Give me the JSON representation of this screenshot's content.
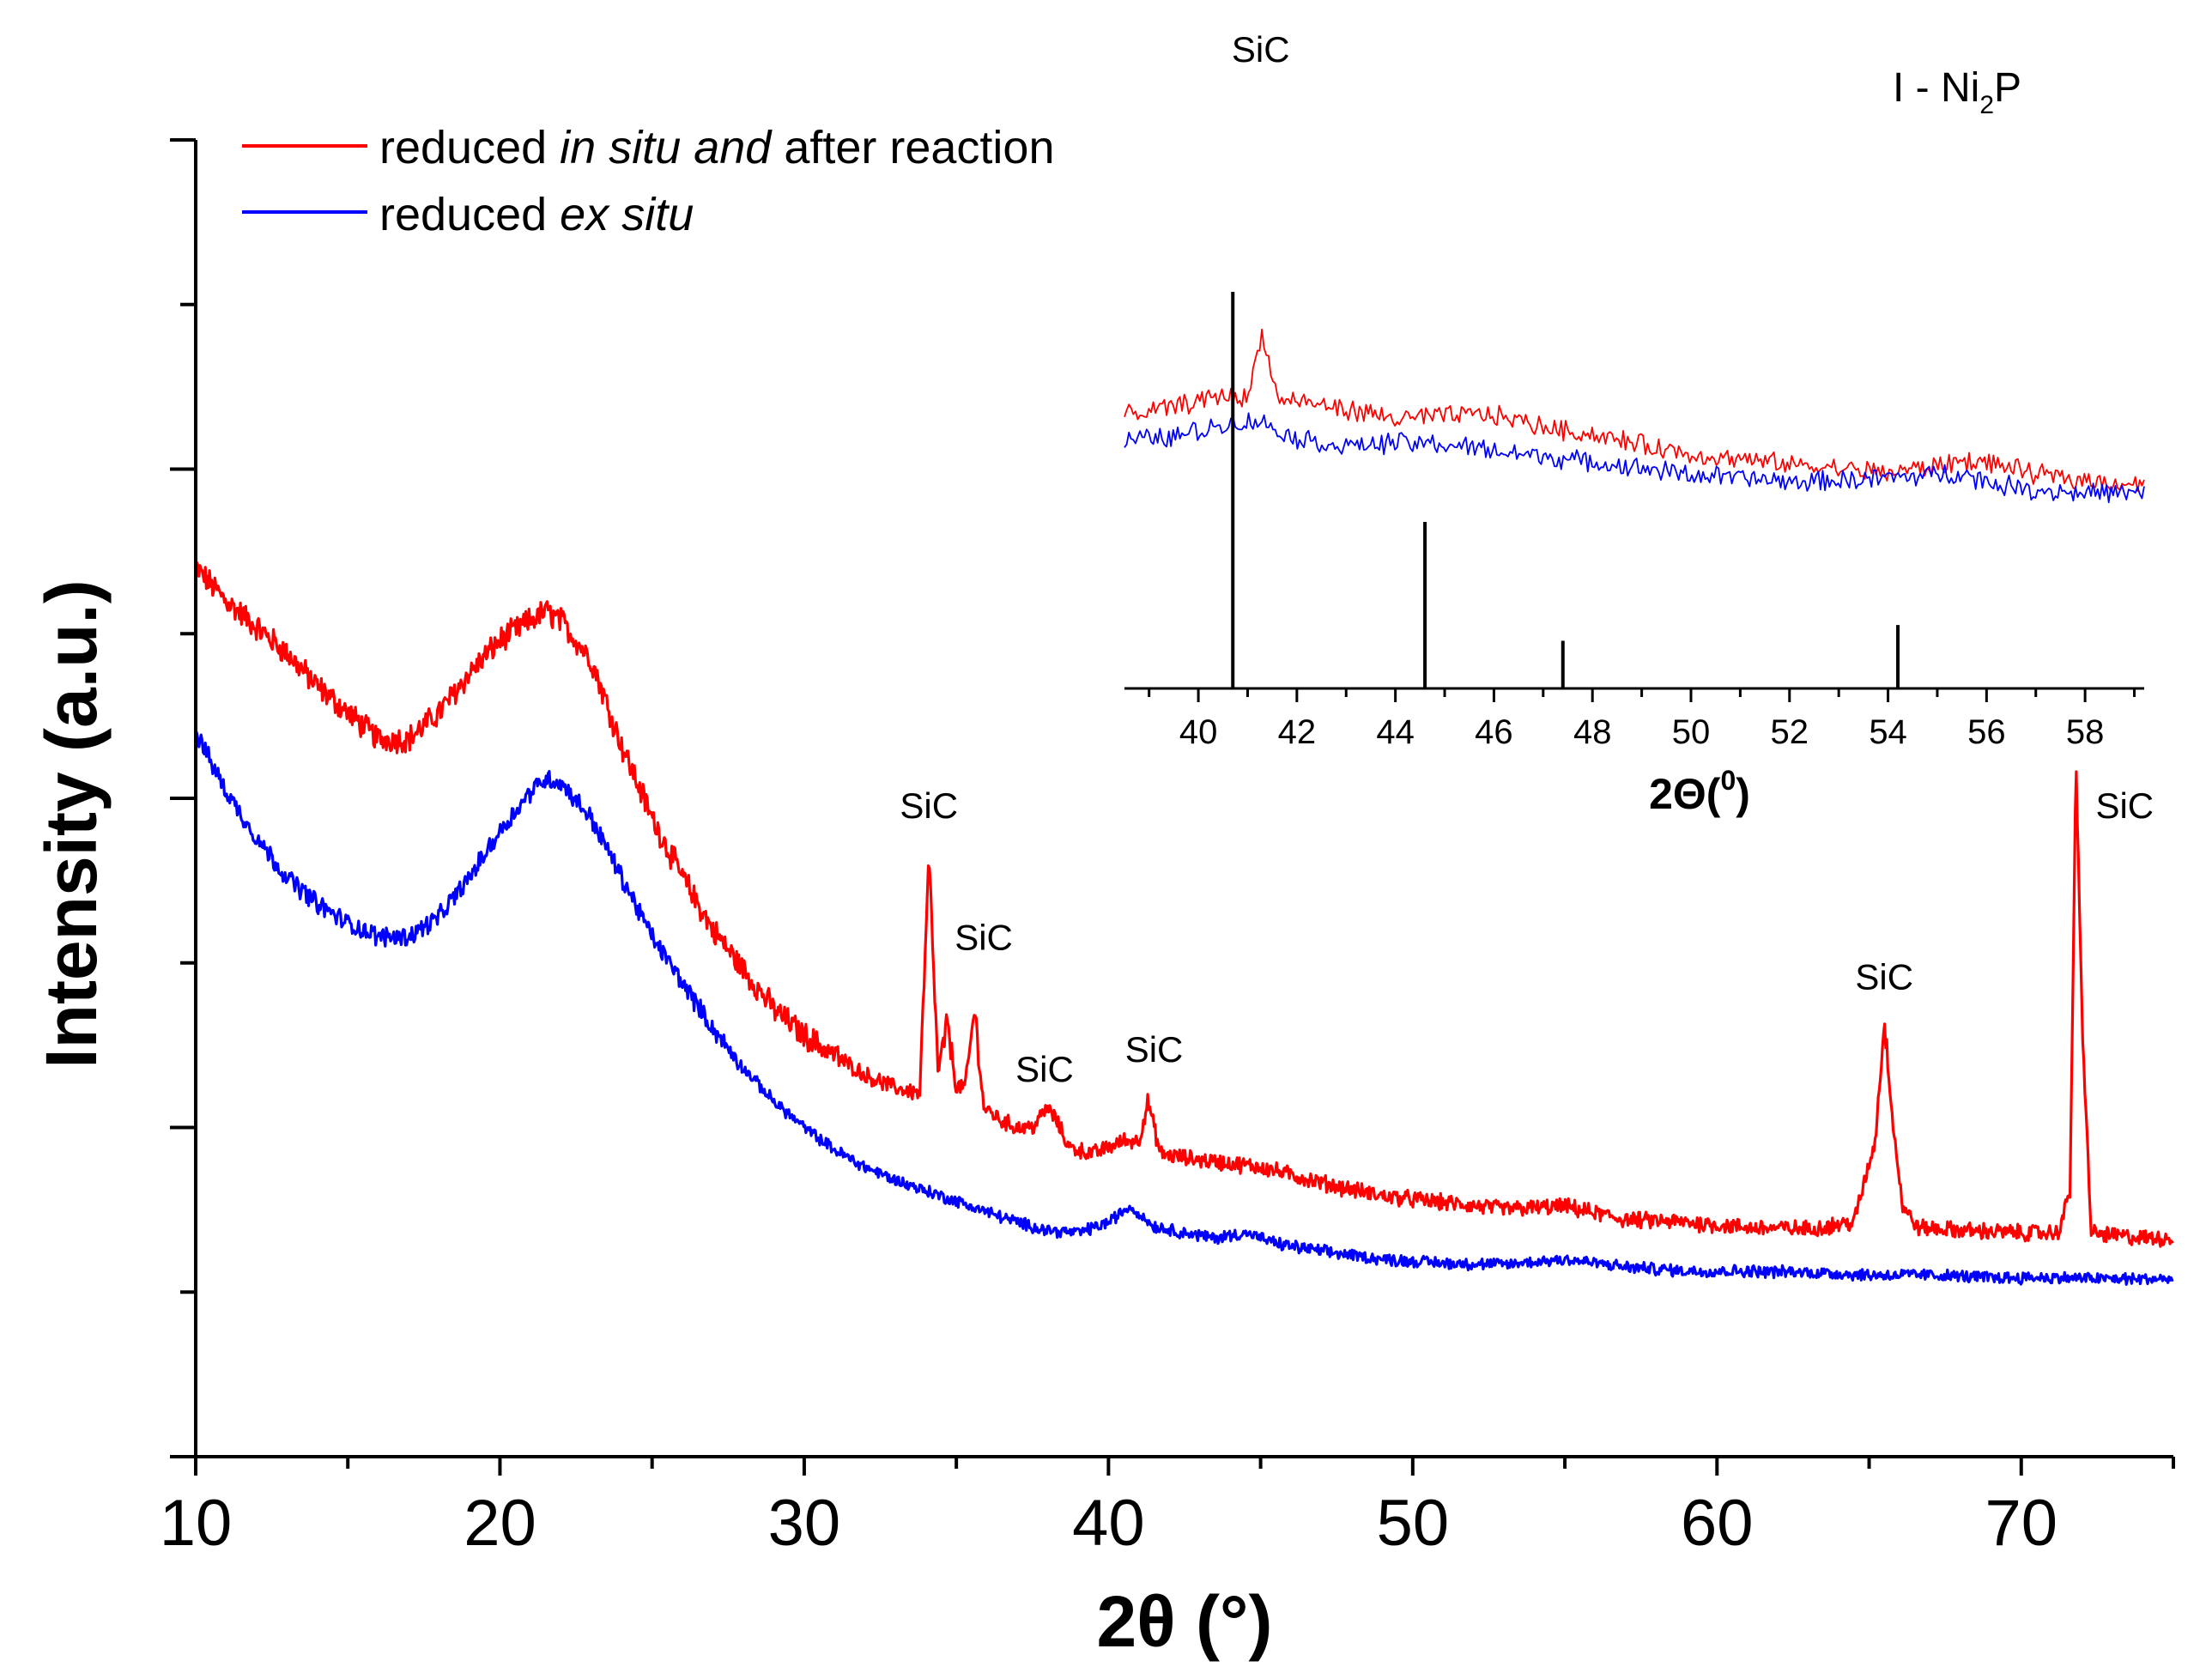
{
  "chart_data": [
    {
      "type": "line",
      "title": "",
      "xlabel": "2θ (°)",
      "ylabel": "Intensity (a.u.)",
      "xlim": [
        10,
        75
      ],
      "ylim": [
        0,
        100
      ],
      "xticks": [
        10,
        20,
        30,
        40,
        50,
        60,
        70
      ],
      "xtick_labels": [
        "10",
        "20",
        "30",
        "40",
        "50",
        "60",
        "70"
      ],
      "y_tick_labels_shown": false,
      "grid": false,
      "legend": {
        "placement": "top-left",
        "entries": [
          {
            "parts": [
              {
                "text": "reduced ",
                "italic": false
              },
              {
                "text": "in situ and",
                "italic": true
              },
              {
                "text": " after reaction",
                "italic": false
              }
            ],
            "color": "#ff0000"
          },
          {
            "parts": [
              {
                "text": "reduced ",
                "italic": false
              },
              {
                "text": "ex situ",
                "italic": true
              }
            ],
            "color": "#0000ff"
          }
        ]
      },
      "series": [
        {
          "color": "#ff0000",
          "x": [
            10,
            11,
            12,
            13,
            14,
            15,
            16,
            17,
            18,
            19,
            20,
            21,
            21.5,
            22,
            23,
            24,
            25,
            26,
            27,
            28,
            29,
            30,
            31,
            32,
            33,
            33.8,
            34.1,
            34.4,
            34.7,
            35,
            35.3,
            35.6,
            35.9,
            36.5,
            37,
            37.5,
            38,
            38.3,
            38.7,
            39.5,
            40.5,
            41,
            41.3,
            41.7,
            42.5,
            43.5,
            45,
            47,
            49,
            51,
            53,
            55,
            57,
            59,
            61,
            63,
            64.5,
            65.2,
            65.5,
            65.8,
            66.1,
            66.6,
            68,
            70,
            71.2,
            71.6,
            71.8,
            72.0,
            72.3,
            73,
            74,
            75
          ],
          "y": [
            67.5,
            65,
            63,
            61,
            58.5,
            56.5,
            54.5,
            54.5,
            56.5,
            59.5,
            62,
            63.5,
            64.2,
            63.5,
            60.5,
            54,
            48.5,
            44,
            40,
            37,
            34,
            32,
            30.5,
            29,
            28,
            27.6,
            45.5,
            29,
            33,
            28,
            28.2,
            34,
            26.5,
            25.5,
            25,
            25,
            26.5,
            25.5,
            23.5,
            23,
            24,
            24,
            27,
            23,
            22.7,
            22.4,
            22,
            20.8,
            19.8,
            19.3,
            18.8,
            19,
            18,
            17.8,
            17.4,
            17.3,
            17.8,
            24,
            33,
            25,
            19,
            17.4,
            17.2,
            17,
            17,
            20,
            52.5,
            33,
            17,
            16.8,
            16.6,
            16.6
          ]
        },
        {
          "color": "#0000ff",
          "x": [
            10,
            11,
            12,
            13,
            14,
            15,
            16,
            17,
            18,
            19,
            20,
            21,
            21.5,
            22,
            23,
            24,
            25,
            26,
            27,
            28,
            29,
            30,
            31,
            32,
            33,
            34,
            35,
            36,
            37,
            38,
            39,
            40,
            40.7,
            41.5,
            42.5,
            43.5,
            44.5,
            45.5,
            47,
            49,
            51,
            53,
            55,
            57,
            59,
            61,
            63,
            65,
            67,
            69,
            71,
            73,
            75
          ],
          "y": [
            55,
            50.5,
            47,
            44,
            42,
            40.5,
            39.5,
            39.5,
            41,
            44,
            47.5,
            50.5,
            51.5,
            51.2,
            48.5,
            44,
            39.5,
            36,
            32.5,
            29.5,
            27,
            25,
            23.3,
            22,
            21,
            20.2,
            19.4,
            18.6,
            17.8,
            17.2,
            17,
            17.8,
            19,
            17.5,
            17,
            16.6,
            17,
            16.2,
            15.6,
            15,
            14.7,
            14.6,
            15,
            14.4,
            14.1,
            14.1,
            14,
            13.8,
            13.8,
            13.6,
            13.6,
            13.5,
            13.5
          ]
        }
      ],
      "annotations": [
        {
          "text": "SiC",
          "x": 34.1,
          "y": 48.5
        },
        {
          "text": "SiC",
          "x": 35.9,
          "y": 38.5
        },
        {
          "text": "SiC",
          "x": 37.9,
          "y": 28.5
        },
        {
          "text": "SiC",
          "x": 41.5,
          "y": 30.0
        },
        {
          "text": "SiC",
          "x": 65.5,
          "y": 35.5
        },
        {
          "text": "SiC",
          "x": 73.4,
          "y": 48.5
        }
      ]
    },
    {
      "type": "line",
      "title": "",
      "xlabel": "2Θ(0)",
      "ylabel": "",
      "xlim": [
        38.5,
        59.2
      ],
      "ylim": [
        0,
        100
      ],
      "xticks": [
        40,
        42,
        44,
        46,
        48,
        50,
        52,
        54,
        56,
        58
      ],
      "xtick_labels": [
        "40",
        "42",
        "44",
        "46",
        "48",
        "50",
        "52",
        "54",
        "56",
        "58"
      ],
      "grid": false,
      "phase_label": {
        "prefix": "I - Ni",
        "sub": "2",
        "suffix": "P"
      },
      "series": [
        {
          "color": "#ff0000",
          "x": [
            38.5,
            39.5,
            40.5,
            41.0,
            41.3,
            41.6,
            42.5,
            44,
            45.5,
            46,
            47,
            48,
            50,
            52,
            54,
            55,
            55.5,
            56,
            57,
            58,
            59.2
          ],
          "y": [
            68.5,
            71,
            74,
            73,
            90,
            73,
            71.5,
            68,
            69,
            69,
            66,
            64,
            59,
            56.5,
            54.5,
            56,
            57.5,
            57,
            54,
            52.5,
            51.5
          ]
        },
        {
          "color": "#0000ff",
          "x": [
            38.5,
            39.5,
            40.5,
            41.2,
            42,
            43,
            44,
            45,
            46,
            47,
            48,
            50,
            52,
            54,
            55.5,
            56,
            57,
            58,
            59.2
          ],
          "y": [
            62.5,
            63.5,
            66.5,
            67.5,
            63,
            61,
            62,
            61.5,
            60,
            58.5,
            57,
            54,
            52,
            53,
            54.5,
            52,
            50,
            49.5,
            49
          ]
        }
      ],
      "reference_sticks": [
        {
          "x": 40.7,
          "y": 100
        },
        {
          "x": 44.6,
          "y": 42
        },
        {
          "x": 47.4,
          "y": 12
        },
        {
          "x": 54.2,
          "y": 16
        }
      ],
      "annotations": [
        {
          "text": "SiC",
          "x": 41.3,
          "y": 105
        }
      ]
    }
  ]
}
